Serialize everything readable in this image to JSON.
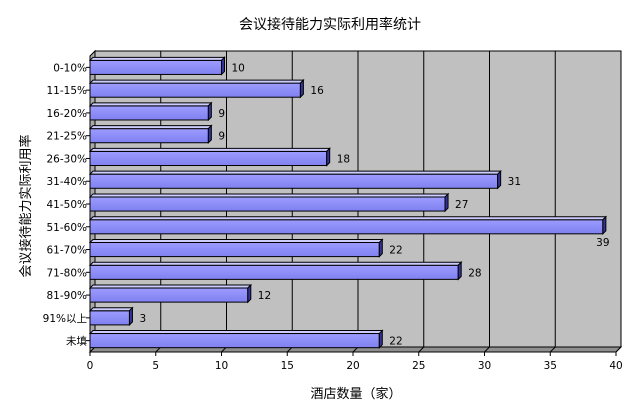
{
  "chart_data": {
    "type": "bar",
    "orientation": "horizontal",
    "title": "会议接待能力实际利用率统计",
    "xlabel": "酒店数量（家）",
    "ylabel": "会议接待能力实际利用率",
    "categories": [
      "0-10%",
      "11-15%",
      "16-20%",
      "21-25%",
      "26-30%",
      "31-40%",
      "41-50%",
      "51-60%",
      "61-70%",
      "71-80%",
      "81-90%",
      "91%以上",
      "未填"
    ],
    "values": [
      10,
      16,
      9,
      9,
      18,
      31,
      27,
      39,
      22,
      28,
      12,
      3,
      22
    ],
    "xlim": [
      0,
      40
    ],
    "xticks": [
      "0",
      "5",
      "10",
      "15",
      "20",
      "25",
      "30",
      "35",
      "40"
    ],
    "grid": true,
    "legend": "none",
    "bar_color": "#9999FF",
    "plot_background": "#C0C0C0",
    "bar_style": "3d"
  }
}
